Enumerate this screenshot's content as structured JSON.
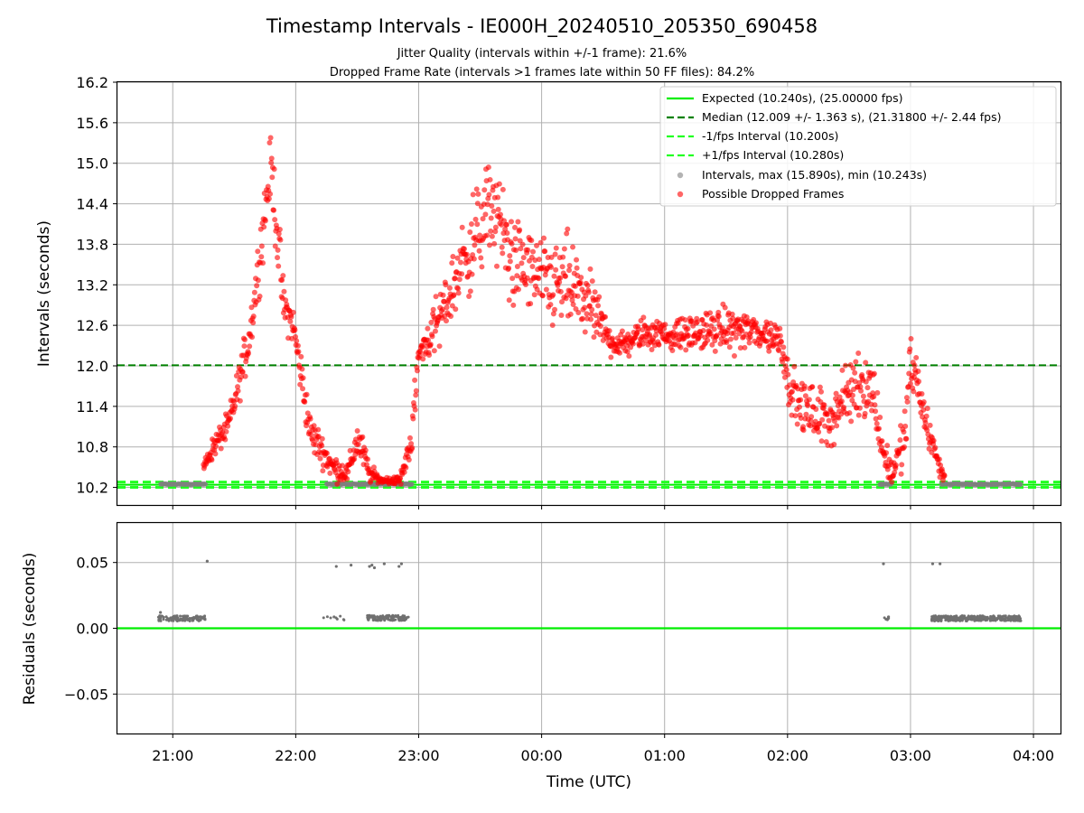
{
  "chart_data": [
    {
      "type": "scatter",
      "title": "Timestamp Intervals - IE000H_20240510_205350_690458",
      "subtitle_lines": [
        "Jitter Quality (intervals within +/-1 frame): 21.6%",
        "Dropped Frame Rate (intervals >1 frames late within 50 FF files): 84.2%"
      ],
      "ylabel": "Intervals (seconds)",
      "ylim": [
        9.94,
        16.2
      ],
      "yticks": [
        "10.2",
        "10.8",
        "11.4",
        "12.0",
        "12.6",
        "13.2",
        "13.8",
        "14.4",
        "15.0",
        "15.6",
        "16.2"
      ],
      "grid": true,
      "legend_position": "upper right",
      "lines": {
        "expected": 10.24,
        "median": 12.009,
        "minus_one_frame": 10.2,
        "plus_one_frame": 10.28
      },
      "colors": {
        "expected": "#00ee00",
        "median": "#008000",
        "interval_band": "#22ff22",
        "intervals": "#808080",
        "dropped": "#ff0000"
      },
      "legend": [
        {
          "key": "expected",
          "label": "Expected (10.240s), (25.00000 fps)"
        },
        {
          "key": "median",
          "label": "Median (12.009 +/- 1.363 s), (21.31800 +/- 2.44 fps)"
        },
        {
          "key": "minus",
          "label": "-1/fps Interval (10.200s)"
        },
        {
          "key": "plus",
          "label": "+1/fps Interval (10.280s)"
        },
        {
          "key": "intervals",
          "label": "Intervals, max (15.890s), min (10.243s)"
        },
        {
          "key": "dropped",
          "label": "Possible Dropped Frames"
        }
      ],
      "dropped_envelope": {
        "x_hours": [
          21.25,
          21.33,
          21.45,
          21.52,
          21.62,
          21.68,
          21.75,
          21.8,
          21.85,
          21.9,
          21.98,
          22.05,
          22.12,
          22.2,
          22.3,
          22.42,
          22.5,
          22.55,
          22.6,
          22.7,
          22.85,
          22.95,
          23.0,
          23.15,
          23.35,
          23.6,
          23.75,
          23.9,
          24.05,
          24.2,
          24.35,
          24.45,
          24.55,
          24.65,
          24.75,
          24.85,
          25.05,
          25.3,
          25.55,
          25.75,
          25.95,
          26.0,
          26.1,
          26.2,
          26.35,
          26.5,
          26.6,
          26.7,
          26.78,
          26.85,
          26.95,
          27.0,
          27.05,
          27.12,
          27.2,
          27.28
        ],
        "y_center": [
          10.5,
          10.8,
          11.1,
          11.6,
          12.4,
          13.2,
          14.3,
          15.0,
          14.0,
          12.9,
          12.6,
          11.8,
          11.0,
          10.8,
          10.5,
          10.4,
          10.9,
          10.7,
          10.4,
          10.3,
          10.3,
          11.0,
          12.2,
          12.6,
          13.5,
          14.4,
          13.6,
          13.4,
          13.2,
          13.2,
          13.0,
          12.7,
          12.4,
          12.3,
          12.4,
          12.5,
          12.45,
          12.5,
          12.55,
          12.5,
          12.4,
          11.8,
          11.4,
          11.3,
          11.2,
          11.6,
          11.8,
          11.6,
          10.7,
          10.4,
          10.9,
          12.0,
          11.8,
          11.2,
          10.7,
          10.3
        ],
        "spread": [
          0.1,
          0.25,
          0.3,
          0.4,
          0.5,
          0.6,
          0.7,
          0.6,
          0.9,
          0.5,
          0.4,
          0.5,
          0.4,
          0.35,
          0.3,
          0.2,
          0.4,
          0.35,
          0.2,
          0.1,
          0.1,
          0.5,
          0.3,
          0.6,
          0.9,
          1.1,
          1.0,
          0.9,
          0.9,
          1.0,
          0.8,
          0.6,
          0.35,
          0.3,
          0.3,
          0.35,
          0.3,
          0.4,
          0.45,
          0.4,
          0.4,
          0.45,
          0.55,
          0.6,
          0.6,
          0.7,
          0.8,
          0.7,
          0.4,
          0.3,
          0.6,
          0.8,
          0.6,
          0.45,
          0.3,
          0.1
        ]
      },
      "normal_spans_hours": [
        [
          20.9,
          21.27
        ],
        [
          22.25,
          22.95
        ],
        [
          26.75,
          26.85
        ],
        [
          27.25,
          27.9
        ]
      ],
      "normal_interval_value": 10.248
    },
    {
      "type": "scatter",
      "xlabel": "Time (UTC)",
      "ylabel": "Residuals (seconds)",
      "ylim": [
        -0.08,
        0.08
      ],
      "yticks": [
        "−0.05",
        "0.00",
        "0.05"
      ],
      "xlim_hours": [
        20.55,
        28.22
      ],
      "xticks": [
        "21:00",
        "22:00",
        "23:00",
        "00:00",
        "01:00",
        "02:00",
        "03:00",
        "04:00"
      ],
      "grid": true,
      "zero_line_color": "#00ee00",
      "residual_color": "#707070",
      "residual_clusters": [
        {
          "x_hours": [
            20.88,
            21.27
          ],
          "y": 0.0075,
          "count": 110
        },
        {
          "x_hours": [
            22.22,
            22.4
          ],
          "y": 0.0078,
          "count": 10
        },
        {
          "x_hours": [
            22.58,
            22.92
          ],
          "y": 0.0078,
          "count": 120
        },
        {
          "x_hours": [
            26.78,
            26.83
          ],
          "y": 0.0075,
          "count": 8
        },
        {
          "x_hours": [
            27.17,
            27.9
          ],
          "y": 0.0075,
          "count": 320
        }
      ],
      "residual_points": [
        {
          "x": 20.9,
          "y": 0.012
        },
        {
          "x": 21.28,
          "y": 0.051
        },
        {
          "x": 22.33,
          "y": 0.047
        },
        {
          "x": 22.45,
          "y": 0.048
        },
        {
          "x": 22.6,
          "y": 0.047
        },
        {
          "x": 22.62,
          "y": 0.048
        },
        {
          "x": 22.64,
          "y": 0.046
        },
        {
          "x": 22.72,
          "y": 0.049
        },
        {
          "x": 22.84,
          "y": 0.047
        },
        {
          "x": 22.86,
          "y": 0.049
        },
        {
          "x": 26.78,
          "y": 0.049
        },
        {
          "x": 27.18,
          "y": 0.049
        },
        {
          "x": 27.24,
          "y": 0.049
        }
      ]
    }
  ]
}
